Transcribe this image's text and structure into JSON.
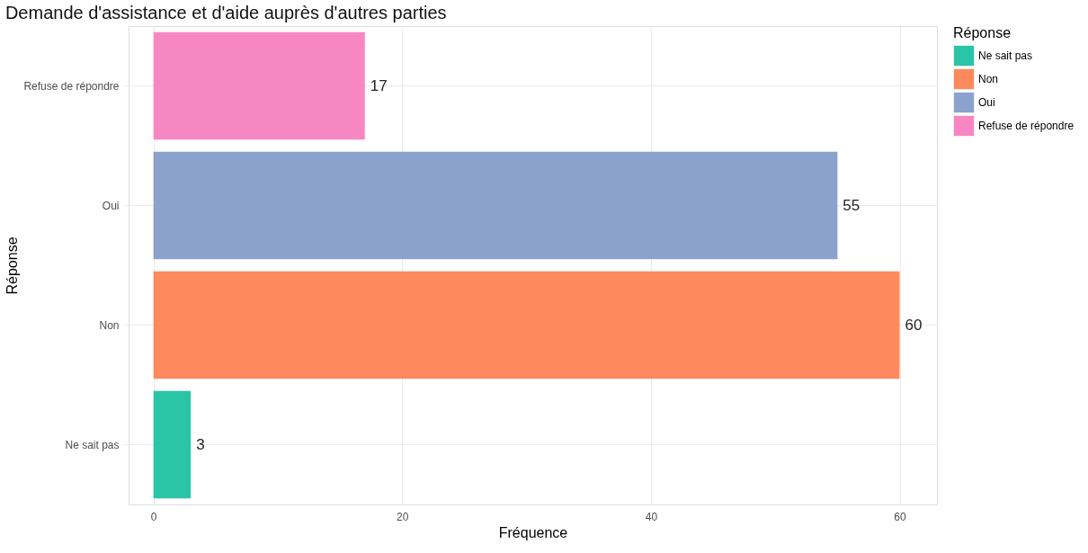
{
  "chart_data": {
    "type": "bar",
    "orientation": "horizontal",
    "title": "Demande d'assistance et d'aide auprès d'autres parties",
    "xlabel": "Fréquence",
    "ylabel": "Réponse",
    "legend_title": "Réponse",
    "categories": [
      "Refuse de répondre",
      "Oui",
      "Non",
      "Ne sait pas"
    ],
    "series": [
      {
        "name": "Ne sait pas",
        "color": "#2ac4a6",
        "values": [
          null,
          null,
          null,
          3
        ]
      },
      {
        "name": "Non",
        "color": "#fd8a5c",
        "values": [
          null,
          null,
          60,
          null
        ]
      },
      {
        "name": "Oui",
        "color": "#8aa2cc",
        "values": [
          null,
          55,
          null,
          null
        ]
      },
      {
        "name": "Refuse de répondre",
        "color": "#f787c3",
        "values": [
          17,
          null,
          null,
          null
        ]
      }
    ],
    "xlim": [
      -2,
      63
    ],
    "xticks": [
      0,
      20,
      40,
      60
    ],
    "grid": true,
    "legend": "right",
    "data_labels": true
  }
}
